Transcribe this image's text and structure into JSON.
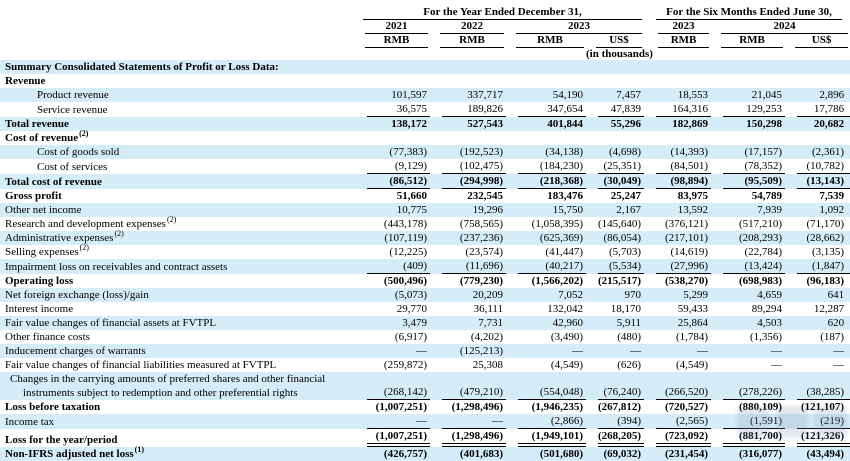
{
  "table": {
    "header": {
      "year_group": {
        "title": "For the Year Ended December 31,",
        "years": [
          "2021",
          "2022",
          "2023"
        ],
        "units": [
          "RMB",
          "RMB",
          "RMB",
          "US$"
        ]
      },
      "six_month_group": {
        "title": "For the Six Months Ended June 30,",
        "years": [
          "2023",
          "2024"
        ],
        "units": [
          "RMB",
          "RMB",
          "US$"
        ]
      },
      "note": "(in thousands)"
    },
    "rows": [
      {
        "label": "Summary Consolidated Statements of Profit or Loss Data:",
        "bold": true,
        "values": []
      },
      {
        "label": "Revenue",
        "bold": true,
        "values": []
      },
      {
        "label": "Product revenue",
        "indent": 1,
        "values": [
          "101,597",
          "337,717",
          "54,190",
          "7,457",
          "18,553",
          "21,045",
          "2,896"
        ]
      },
      {
        "label": "Service revenue",
        "indent": 1,
        "underline": "single",
        "values": [
          "36,575",
          "189,826",
          "347,654",
          "47,839",
          "164,316",
          "129,253",
          "17,786"
        ]
      },
      {
        "label": "Total revenue",
        "bold": true,
        "values": [
          "138,172",
          "527,543",
          "401,844",
          "55,296",
          "182,869",
          "150,298",
          "20,682"
        ]
      },
      {
        "label": "Cost of revenue",
        "sup": "(2)",
        "bold": true,
        "values": []
      },
      {
        "label": "Cost of goods sold",
        "indent": 1,
        "values": [
          "(77,383)",
          "(192,523)",
          "(34,138)",
          "(4,698)",
          "(14,393)",
          "(17,157)",
          "(2,361)"
        ]
      },
      {
        "label": "Cost of services",
        "indent": 1,
        "underline": "single",
        "values": [
          "(9,129)",
          "(102,475)",
          "(184,230)",
          "(25,351)",
          "(84,501)",
          "(78,352)",
          "(10,782)"
        ]
      },
      {
        "label": "Total cost of revenue",
        "bold": true,
        "underline": "single",
        "values": [
          "(86,512)",
          "(294,998)",
          "(218,368)",
          "(30,049)",
          "(98,894)",
          "(95,509)",
          "(13,143)"
        ]
      },
      {
        "label": "Gross profit",
        "bold": true,
        "values": [
          "51,660",
          "232,545",
          "183,476",
          "25,247",
          "83,975",
          "54,789",
          "7,539"
        ]
      },
      {
        "label": "Other net income",
        "values": [
          "10,775",
          "19,296",
          "15,750",
          "2,167",
          "13,592",
          "7,939",
          "1,092"
        ]
      },
      {
        "label": "Research and development expenses",
        "sup": "(2)",
        "values": [
          "(443,178)",
          "(758,565)",
          "(1,058,395)",
          "(145,640)",
          "(376,121)",
          "(517,210)",
          "(71,170)"
        ]
      },
      {
        "label": "Administrative expenses",
        "sup": "(2)",
        "values": [
          "(107,119)",
          "(237,236)",
          "(625,369)",
          "(86,054)",
          "(217,101)",
          "(208,293)",
          "(28,662)"
        ]
      },
      {
        "label": "Selling expenses",
        "sup": "(2)",
        "values": [
          "(12,225)",
          "(23,574)",
          "(41,447)",
          "(5,703)",
          "(14,619)",
          "(22,784)",
          "(3,135)"
        ]
      },
      {
        "label": "Impairment loss on receivables and contract assets",
        "underline": "single",
        "values": [
          "(409)",
          "(11,696)",
          "(40,217)",
          "(5,534)",
          "(27,996)",
          "(13,424)",
          "(1,847)"
        ]
      },
      {
        "label": "Operating loss",
        "bold": true,
        "values": [
          "(500,496)",
          "(779,230)",
          "(1,566,202)",
          "(215,517)",
          "(538,270)",
          "(698,983)",
          "(96,183)"
        ]
      },
      {
        "label": "Net foreign exchange (loss)/gain",
        "values": [
          "(5,073)",
          "20,209",
          "7,052",
          "970",
          "5,299",
          "4,659",
          "641"
        ]
      },
      {
        "label": "Interest income",
        "values": [
          "29,770",
          "36,111",
          "132,042",
          "18,170",
          "59,433",
          "89,294",
          "12,287"
        ]
      },
      {
        "label": "Fair value changes of financial assets at FVTPL",
        "values": [
          "3,479",
          "7,731",
          "42,960",
          "5,911",
          "25,864",
          "4,503",
          "620"
        ]
      },
      {
        "label": "Other finance costs",
        "values": [
          "(6,917)",
          "(4,202)",
          "(3,490)",
          "(480)",
          "(1,784)",
          "(1,356)",
          "(187)"
        ]
      },
      {
        "label": "Inducement charges of warrants",
        "values": [
          "—",
          "(125,213)",
          "—",
          "—",
          "—",
          "—",
          "—"
        ]
      },
      {
        "label": "Fair value changes of financial liabilities measured at FVTPL",
        "values": [
          "(259,872)",
          "25,308",
          "(4,549)",
          "(626)",
          "(4,549)",
          "—",
          "—"
        ]
      },
      {
        "label": "Changes in the carrying amounts of preferred shares and other financial",
        "label2": "instruments subject to redemption and other preferential rights",
        "underline": "single",
        "values": [
          "(268,142)",
          "(479,210)",
          "(554,048)",
          "(76,240)",
          "(266,520)",
          "(278,226)",
          "(38,285)"
        ]
      },
      {
        "label": "Loss before taxation",
        "bold": true,
        "values": [
          "(1,007,251)",
          "(1,298,496)",
          "(1,946,235)",
          "(267,812)",
          "(720,527)",
          "(880,109)",
          "(121,107)"
        ]
      },
      {
        "label": "Income tax",
        "underline": "single",
        "values": [
          "—",
          "—",
          "(2,866)",
          "(394)",
          "(2,565)",
          "(1,591)",
          "(219)"
        ]
      },
      {
        "label": "Loss for the year/period",
        "bold": true,
        "underline": "double",
        "values": [
          "(1,007,251)",
          "(1,298,496)",
          "(1,949,101)",
          "(268,205)",
          "(723,092)",
          "(881,700)",
          "(121,326)"
        ]
      },
      {
        "label": "Non-IFRS adjusted net loss",
        "sup": "(1)",
        "bold": true,
        "values": [
          "(426,757)",
          "(401,683)",
          "(501,680)",
          "(69,032)",
          "(231,454)",
          "(316,077)",
          "(43,494)"
        ]
      }
    ]
  }
}
